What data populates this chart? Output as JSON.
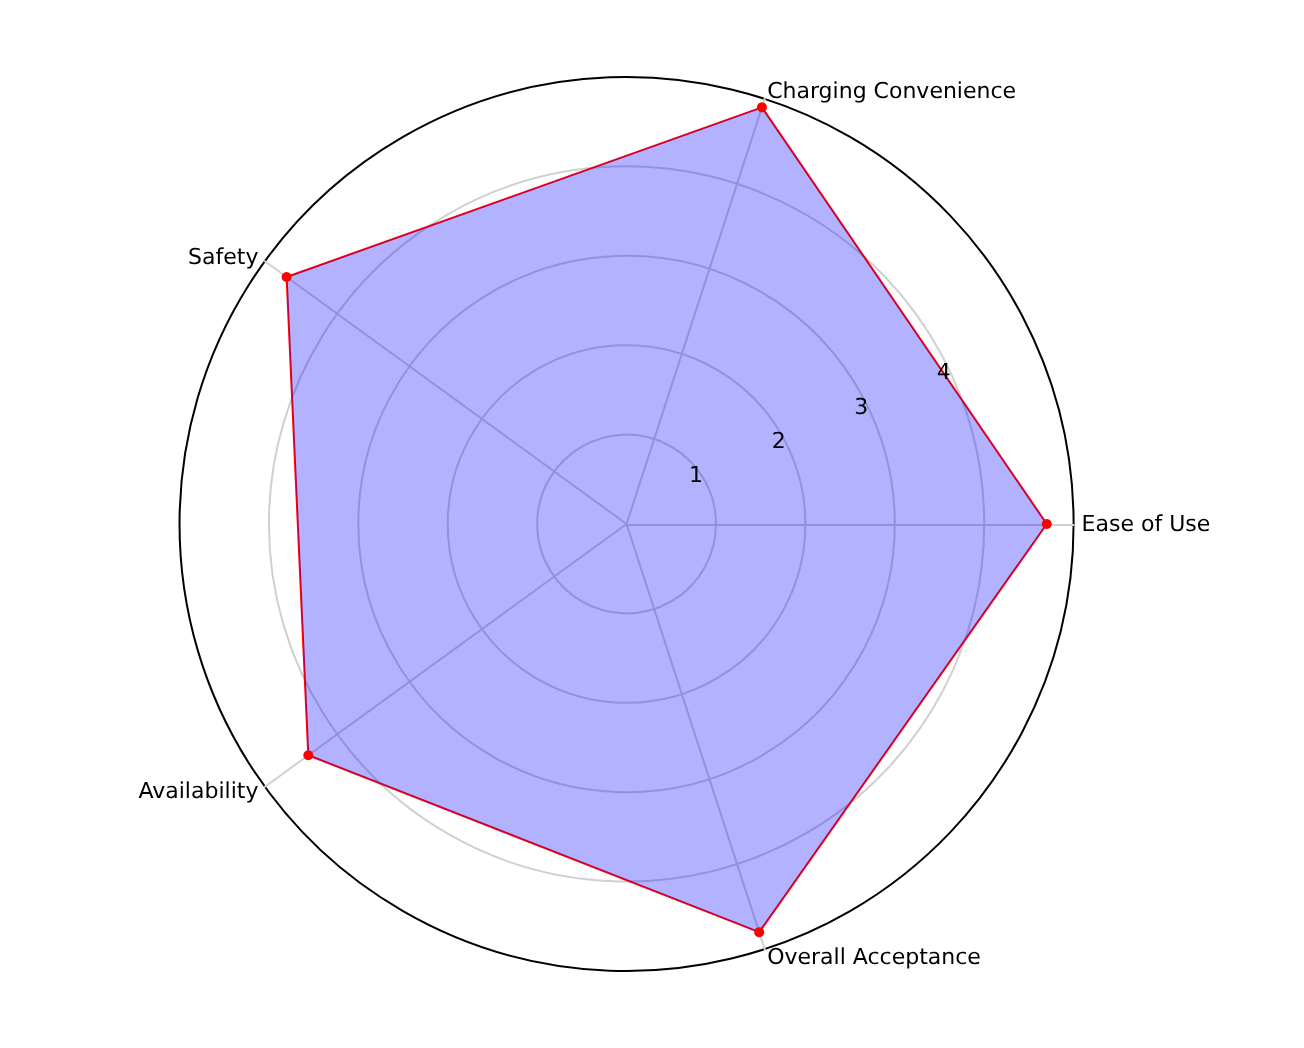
{
  "chart_data": {
    "type": "radar",
    "categories": [
      "Charging Convenience",
      "Ease of Use",
      "Overall Acceptance",
      "Availability",
      "Safety"
    ],
    "series": [
      {
        "color": "#0000ff",
        "values": [
          4.9,
          4.7,
          4.8,
          4.4,
          4.7
        ]
      }
    ],
    "ylim": [
      0,
      5
    ],
    "yticks": [
      1,
      2,
      3,
      4
    ],
    "grid": true,
    "marker": "circle"
  }
}
